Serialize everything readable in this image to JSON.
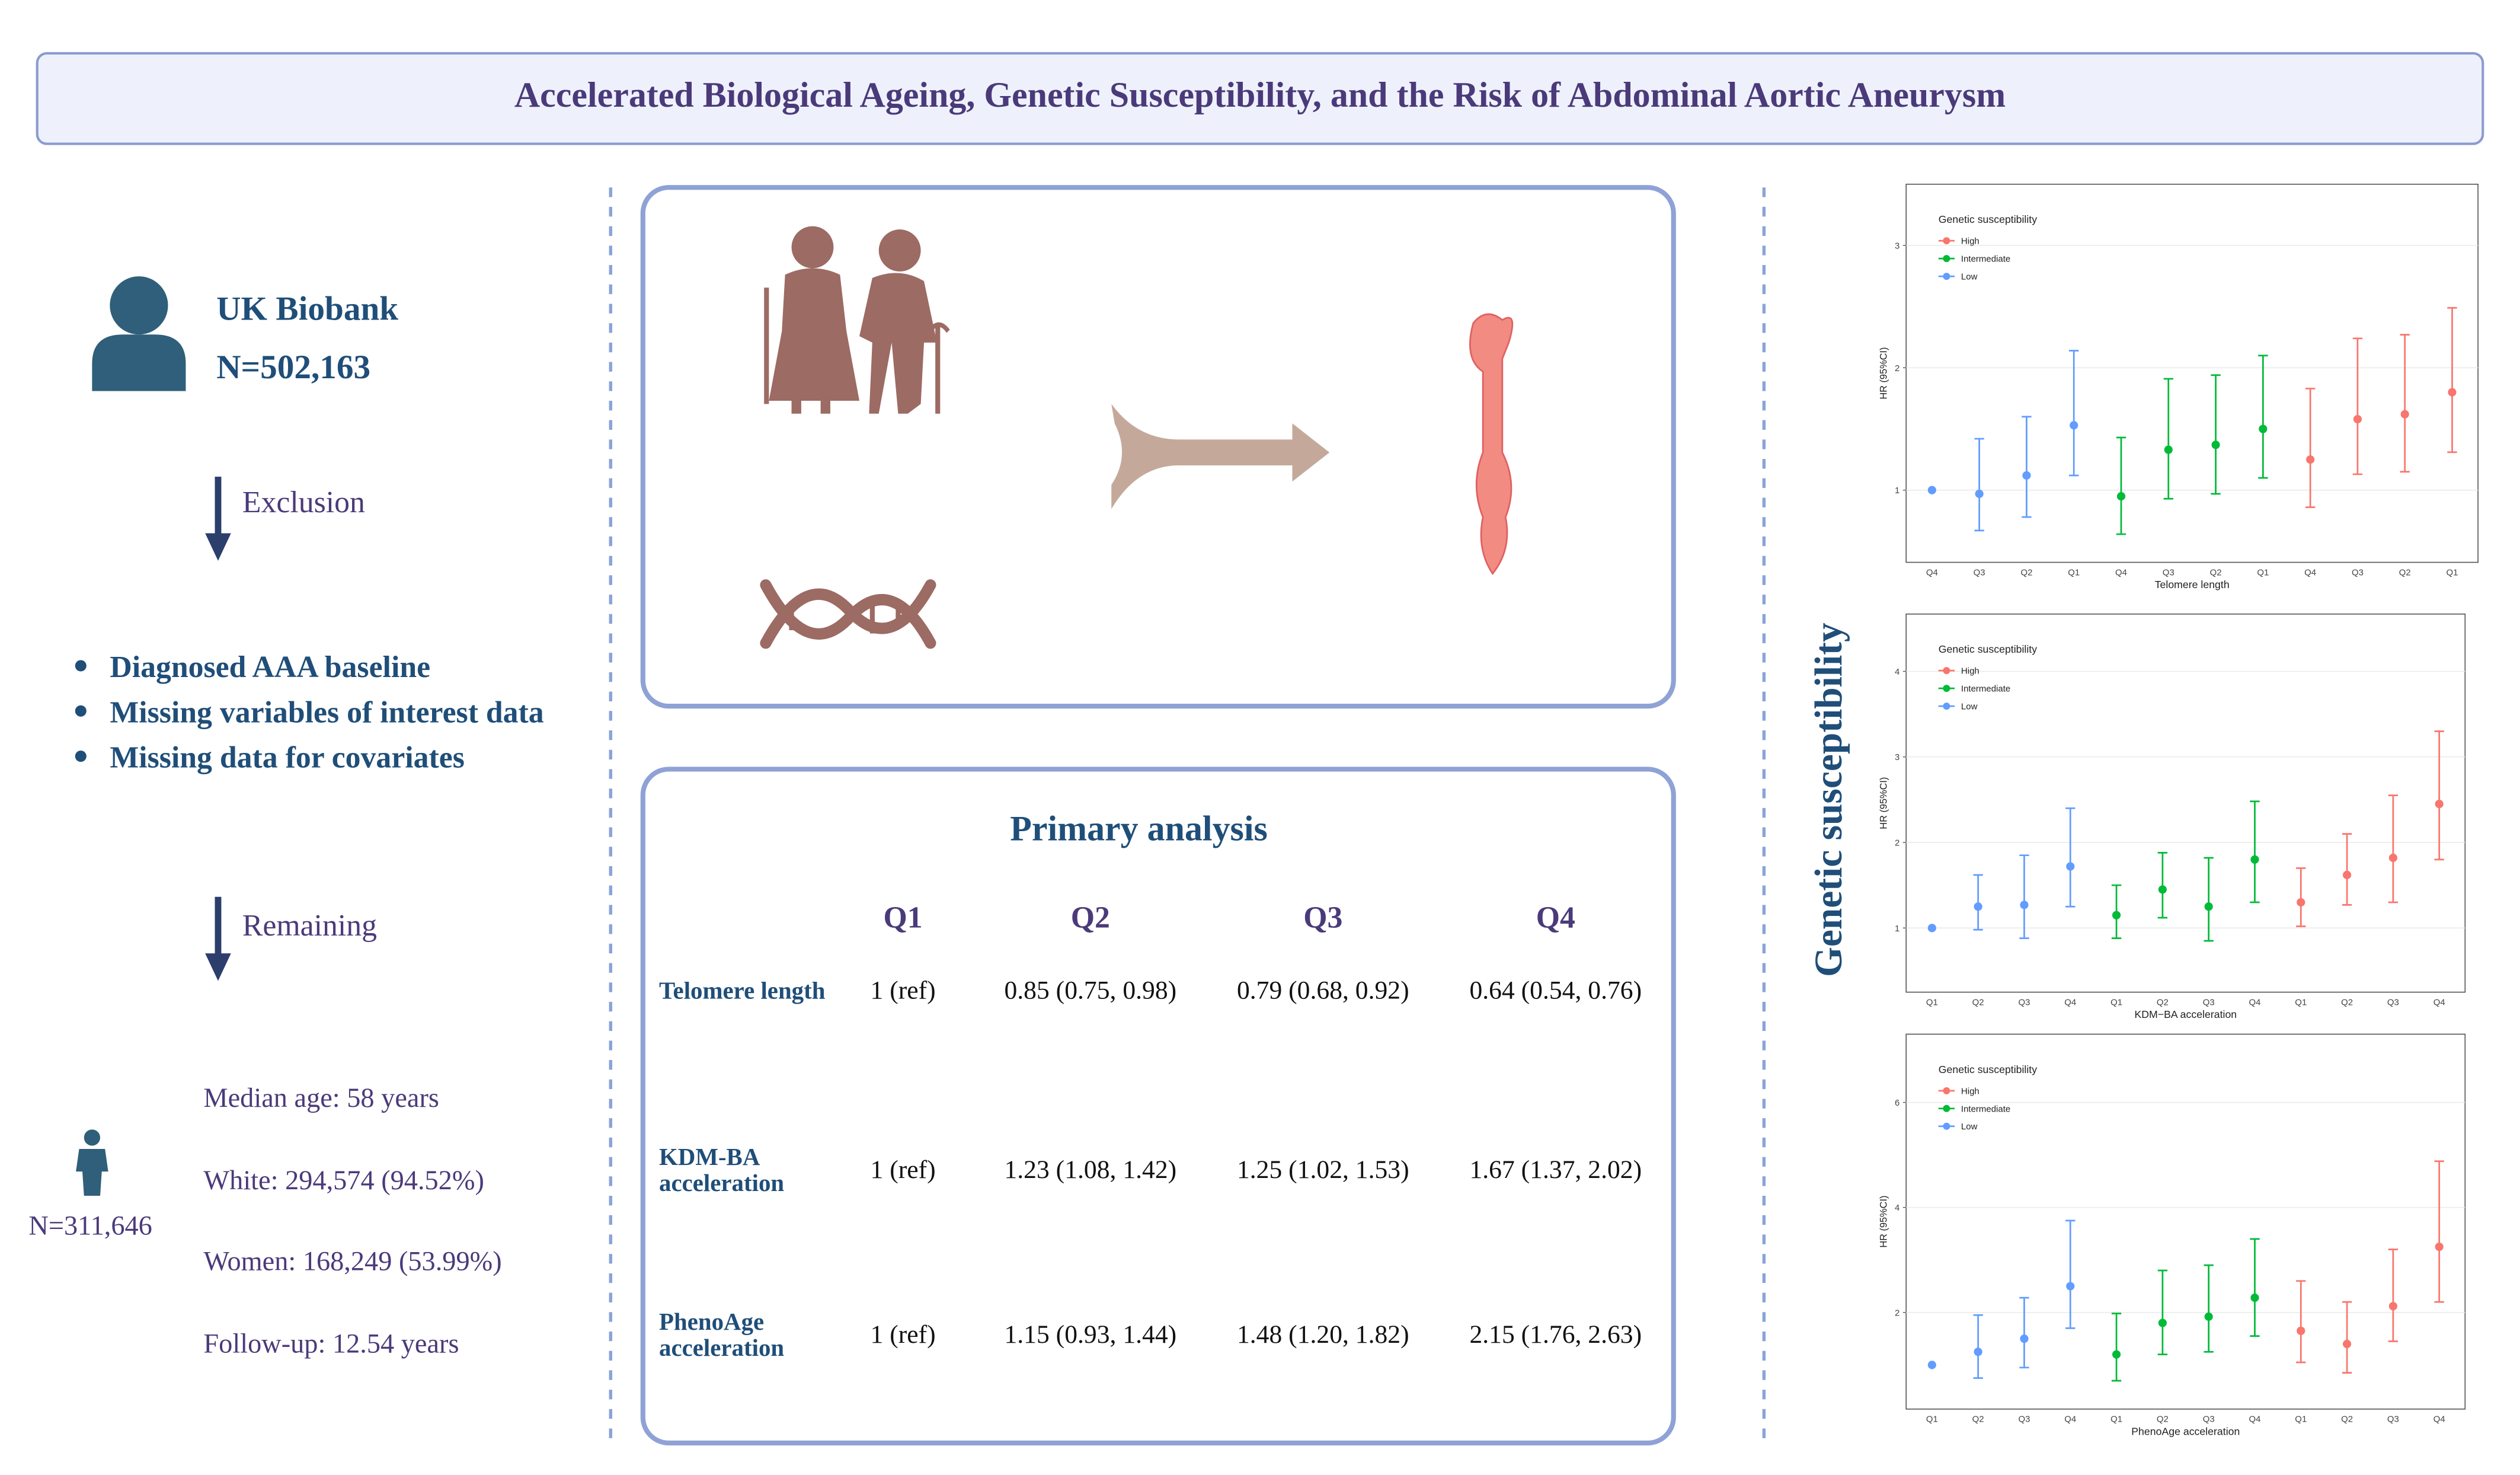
{
  "header": {
    "title": "Accelerated Biological Ageing, Genetic Susceptibility, and the Risk of Abdominal Aortic Aneurysm"
  },
  "cohort": {
    "name": "UK Biobank",
    "n": "N=502,163"
  },
  "flow": {
    "exclusion": "Exclusion",
    "criteria": [
      "Diagnosed AAA baseline",
      "Missing variables of interest data",
      "Missing data for covariates"
    ],
    "remaining": "Remaining"
  },
  "sample": {
    "n": "N=311,646",
    "stats": [
      "Median age: 58 years",
      "White: 294,574 (94.52%)",
      "Women: 168,249 (53.99%)",
      "Follow-up: 12.54 years"
    ]
  },
  "table": {
    "title": "Primary analysis",
    "columns": [
      "Q1",
      "Q2",
      "Q3",
      "Q4"
    ],
    "rows": [
      {
        "label": [
          "Telomere length"
        ],
        "cells": [
          "1 (ref)",
          "0.85 (0.75, 0.98)",
          "0.79 (0.68, 0.92)",
          "0.64 (0.54, 0.76)"
        ]
      },
      {
        "label": [
          "KDM-BA",
          "acceleration"
        ],
        "cells": [
          "1 (ref)",
          "1.23 (1.08, 1.42)",
          "1.25 (1.02, 1.53)",
          "1.67 (1.37, 2.02)"
        ]
      },
      {
        "label": [
          "PhenoAge",
          "acceleration"
        ],
        "cells": [
          "1 (ref)",
          "1.15 (0.93, 1.44)",
          "1.48 (1.20, 1.82)",
          "2.15 (1.76, 2.63)"
        ]
      }
    ]
  },
  "side_label": "Genetic susceptibility",
  "chart_data": [
    {
      "type": "errorbar",
      "legend_title": "Genetic susceptibility",
      "y_label": "HR (95%CI)",
      "x_label": "Telomere length",
      "categories": [
        "Q4",
        "Q3",
        "Q2",
        "Q1",
        "Q4",
        "Q3",
        "Q2",
        "Q1",
        "Q4",
        "Q3",
        "Q2",
        "Q1"
      ],
      "series": [
        {
          "name": "High",
          "color": "#f8766d",
          "values": [
            null,
            null,
            null,
            null,
            null,
            null,
            null,
            null,
            1.25,
            1.58,
            1.62,
            1.8
          ],
          "lower": [
            null,
            null,
            null,
            null,
            null,
            null,
            null,
            null,
            0.86,
            1.13,
            1.15,
            1.31
          ],
          "upper": [
            null,
            null,
            null,
            null,
            null,
            null,
            null,
            null,
            1.83,
            2.24,
            2.27,
            2.49
          ]
        },
        {
          "name": "Intermediate",
          "color": "#00ba38",
          "values": [
            null,
            null,
            null,
            null,
            0.95,
            1.33,
            1.37,
            1.5,
            null,
            null,
            null,
            null
          ],
          "lower": [
            null,
            null,
            null,
            null,
            0.64,
            0.93,
            0.97,
            1.1,
            null,
            null,
            null,
            null
          ],
          "upper": [
            null,
            null,
            null,
            null,
            1.43,
            1.91,
            1.94,
            2.1,
            null,
            null,
            null,
            null
          ]
        },
        {
          "name": "Low",
          "color": "#619cff",
          "values": [
            1.0,
            0.97,
            1.12,
            1.53,
            null,
            null,
            null,
            null,
            null,
            null,
            null,
            null
          ],
          "lower": [
            null,
            0.67,
            0.78,
            1.12,
            null,
            null,
            null,
            null,
            null,
            null,
            null,
            null
          ],
          "upper": [
            null,
            1.42,
            1.6,
            2.14,
            null,
            null,
            null,
            null,
            null,
            null,
            null,
            null
          ]
        }
      ],
      "ylim": [
        0.41,
        3.5
      ],
      "yticks": [
        1,
        2,
        3
      ],
      "grid": true
    },
    {
      "type": "errorbar",
      "legend_title": "Genetic susceptibility",
      "y_label": "HR (95%CI)",
      "x_label": "KDM−BA acceleration",
      "categories": [
        "Q1",
        "Q2",
        "Q3",
        "Q4",
        "Q1",
        "Q2",
        "Q3",
        "Q4",
        "Q1",
        "Q2",
        "Q3",
        "Q4"
      ],
      "series": [
        {
          "name": "High",
          "color": "#f8766d",
          "values": [
            null,
            null,
            null,
            null,
            null,
            null,
            null,
            null,
            1.3,
            1.62,
            1.82,
            2.45
          ],
          "lower": [
            null,
            null,
            null,
            null,
            null,
            null,
            null,
            null,
            1.02,
            1.27,
            1.3,
            1.8
          ],
          "upper": [
            null,
            null,
            null,
            null,
            null,
            null,
            null,
            null,
            1.7,
            2.1,
            2.55,
            3.3
          ]
        },
        {
          "name": "Intermediate",
          "color": "#00ba38",
          "values": [
            null,
            null,
            null,
            null,
            1.15,
            1.45,
            1.25,
            1.8,
            null,
            null,
            null,
            null
          ],
          "lower": [
            null,
            null,
            null,
            null,
            0.88,
            1.12,
            0.85,
            1.3,
            null,
            null,
            null,
            null
          ],
          "upper": [
            null,
            null,
            null,
            null,
            1.5,
            1.88,
            1.82,
            2.48,
            null,
            null,
            null,
            null
          ]
        },
        {
          "name": "Low",
          "color": "#619cff",
          "values": [
            1.0,
            1.25,
            1.27,
            1.72,
            null,
            null,
            null,
            null,
            null,
            null,
            null,
            null
          ],
          "lower": [
            null,
            0.98,
            0.88,
            1.25,
            null,
            null,
            null,
            null,
            null,
            null,
            null,
            null
          ],
          "upper": [
            null,
            1.62,
            1.85,
            2.4,
            null,
            null,
            null,
            null,
            null,
            null,
            null,
            null
          ]
        }
      ],
      "ylim": [
        0.25,
        4.67
      ],
      "yticks": [
        1,
        2,
        3,
        4
      ],
      "grid": true
    },
    {
      "type": "errorbar",
      "legend_title": "Genetic susceptibility",
      "y_label": "HR (95%CI)",
      "x_label": "PhenoAge acceleration",
      "categories": [
        "Q1",
        "Q2",
        "Q3",
        "Q4",
        "Q1",
        "Q2",
        "Q3",
        "Q4",
        "Q1",
        "Q2",
        "Q3",
        "Q4"
      ],
      "series": [
        {
          "name": "High",
          "color": "#f8766d",
          "values": [
            null,
            null,
            null,
            null,
            null,
            null,
            null,
            null,
            1.65,
            1.4,
            2.12,
            3.25
          ],
          "lower": [
            null,
            null,
            null,
            null,
            null,
            null,
            null,
            null,
            1.05,
            0.85,
            1.45,
            2.2
          ],
          "upper": [
            null,
            null,
            null,
            null,
            null,
            null,
            null,
            null,
            2.6,
            2.2,
            3.2,
            4.88
          ]
        },
        {
          "name": "Intermediate",
          "color": "#00ba38",
          "values": [
            null,
            null,
            null,
            null,
            1.2,
            1.8,
            1.92,
            2.28,
            null,
            null,
            null,
            null
          ],
          "lower": [
            null,
            null,
            null,
            null,
            0.7,
            1.2,
            1.25,
            1.55,
            null,
            null,
            null,
            null
          ],
          "upper": [
            null,
            null,
            null,
            null,
            1.98,
            2.8,
            2.9,
            3.4,
            null,
            null,
            null,
            null
          ]
        },
        {
          "name": "Low",
          "color": "#619cff",
          "values": [
            1.0,
            1.25,
            1.5,
            2.5,
            null,
            null,
            null,
            null,
            null,
            null,
            null,
            null
          ],
          "lower": [
            null,
            0.75,
            0.95,
            1.7,
            null,
            null,
            null,
            null,
            null,
            null,
            null,
            null
          ],
          "upper": [
            null,
            1.95,
            2.28,
            3.75,
            null,
            null,
            null,
            null,
            null,
            null,
            null,
            null
          ]
        }
      ],
      "ylim": [
        0.16,
        7.3
      ],
      "yticks": [
        2,
        4,
        6
      ],
      "grid": true
    }
  ]
}
